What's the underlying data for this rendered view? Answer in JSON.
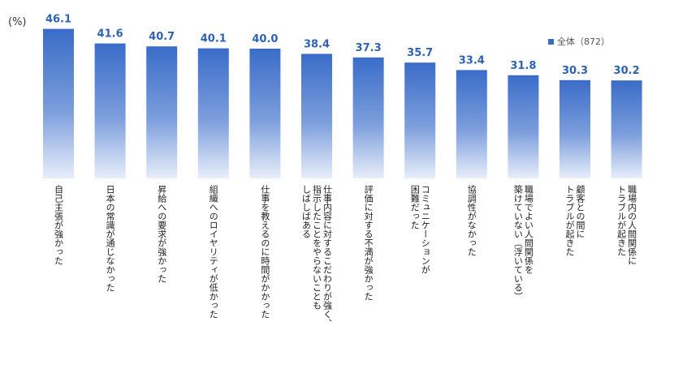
{
  "chart_data": {
    "type": "bar",
    "unit_label": "(%)",
    "categories": [
      "自己主張が強かった",
      "日本の常識が通じなかった",
      "昇給への要求が強かった",
      "組織へのロイヤリティが低かった",
      "仕事を教えるのに時間がかかった",
      "仕事内容に対するこだわりが強く、指示したことをやらないこともしばしばある",
      "評価に対する不満が強かった",
      "コミュニケーションが困難だった",
      "協調性がなかった",
      "職場でよい人間関係を築けていない（浮いている）",
      "顧客との間にトラブルが起きた",
      "職場内の人間関係にトラブルが起きた"
    ],
    "label_columns": [
      [
        "自己主張が強かった"
      ],
      [
        "日本の常識が通じなかった"
      ],
      [
        "昇給への要求が強かった"
      ],
      [
        "組織へのロイヤリティが低かった"
      ],
      [
        "仕事を教えるのに時間がかかった"
      ],
      [
        "仕事内容に対するこだわりが強く、",
        "指示したことをやらないことも",
        "しばしばある"
      ],
      [
        "評価に対する不満が強かった"
      ],
      [
        "コミュニケーションが",
        "困難だった"
      ],
      [
        "協調性がなかった"
      ],
      [
        "職場でよい人間関係を",
        "築けていない（浮いている）"
      ],
      [
        "顧客との間に",
        "トラブルが起きた"
      ],
      [
        "職場内の人間関係に",
        "トラブルが起きた"
      ]
    ],
    "series": [
      {
        "name": "全体（872）",
        "values": [
          46.1,
          41.6,
          40.7,
          40.1,
          40.0,
          38.4,
          37.3,
          35.7,
          33.4,
          31.8,
          30.3,
          30.2
        ]
      }
    ],
    "value_labels": [
      "46.1",
      "41.6",
      "40.7",
      "40.1",
      "40.0",
      "38.4",
      "37.3",
      "35.7",
      "33.4",
      "31.8",
      "30.3",
      "30.2"
    ],
    "ylim": [
      0,
      50
    ],
    "legend_position": "top-right",
    "grid": false,
    "colors": {
      "bar_top": "#3a6cc8",
      "bar_bottom": "#e8eefa",
      "value_label": "#2e62b8"
    }
  }
}
